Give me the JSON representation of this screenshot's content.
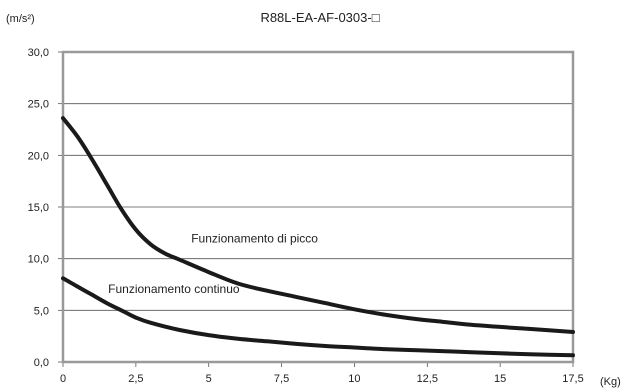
{
  "chart_data": {
    "type": "line",
    "title": "R88L-EA-AF-0303-□",
    "ylabel": "(m/s²)",
    "xlabel": "(Kg)",
    "xlim": [
      0,
      17.5
    ],
    "ylim": [
      0,
      30
    ],
    "grid": "horizontal",
    "x_ticks": [
      "0",
      "2,5",
      "5",
      "7,5",
      "10",
      "12,5",
      "15",
      "17,5"
    ],
    "y_ticks": [
      "0,0",
      "5,0",
      "10,0",
      "15,0",
      "20,0",
      "25,0",
      "30,0"
    ],
    "series": [
      {
        "name": "Funzionamento di picco",
        "x": [
          0,
          0.5,
          1,
          1.5,
          2,
          2.5,
          3,
          3.5,
          4,
          5,
          6,
          7,
          8,
          9,
          10,
          11,
          12,
          13,
          14,
          15,
          16,
          17.5
        ],
        "y": [
          23.6,
          21.8,
          19.6,
          17.2,
          14.8,
          12.8,
          11.4,
          10.5,
          9.9,
          8.7,
          7.6,
          6.9,
          6.3,
          5.7,
          5.1,
          4.6,
          4.2,
          3.9,
          3.6,
          3.4,
          3.2,
          2.9
        ],
        "color": "#1a1a1a"
      },
      {
        "name": "Funzionamento continuo",
        "x": [
          0,
          0.5,
          1,
          1.5,
          2,
          2.5,
          3,
          4,
          5,
          6,
          7,
          8,
          9,
          10,
          11,
          12,
          13,
          14,
          15,
          16,
          17.5
        ],
        "y": [
          8.1,
          7.3,
          6.5,
          5.7,
          5.0,
          4.3,
          3.8,
          3.1,
          2.6,
          2.25,
          2.0,
          1.75,
          1.55,
          1.4,
          1.25,
          1.15,
          1.05,
          0.95,
          0.85,
          0.75,
          0.65
        ],
        "color": "#1a1a1a"
      }
    ],
    "annotations": [
      {
        "text": "Funzionamento di picco",
        "x": 4.4,
        "y": 11.2
      },
      {
        "text": "Funzionamento continuo",
        "x": 1.55,
        "y": 6.3
      }
    ]
  }
}
